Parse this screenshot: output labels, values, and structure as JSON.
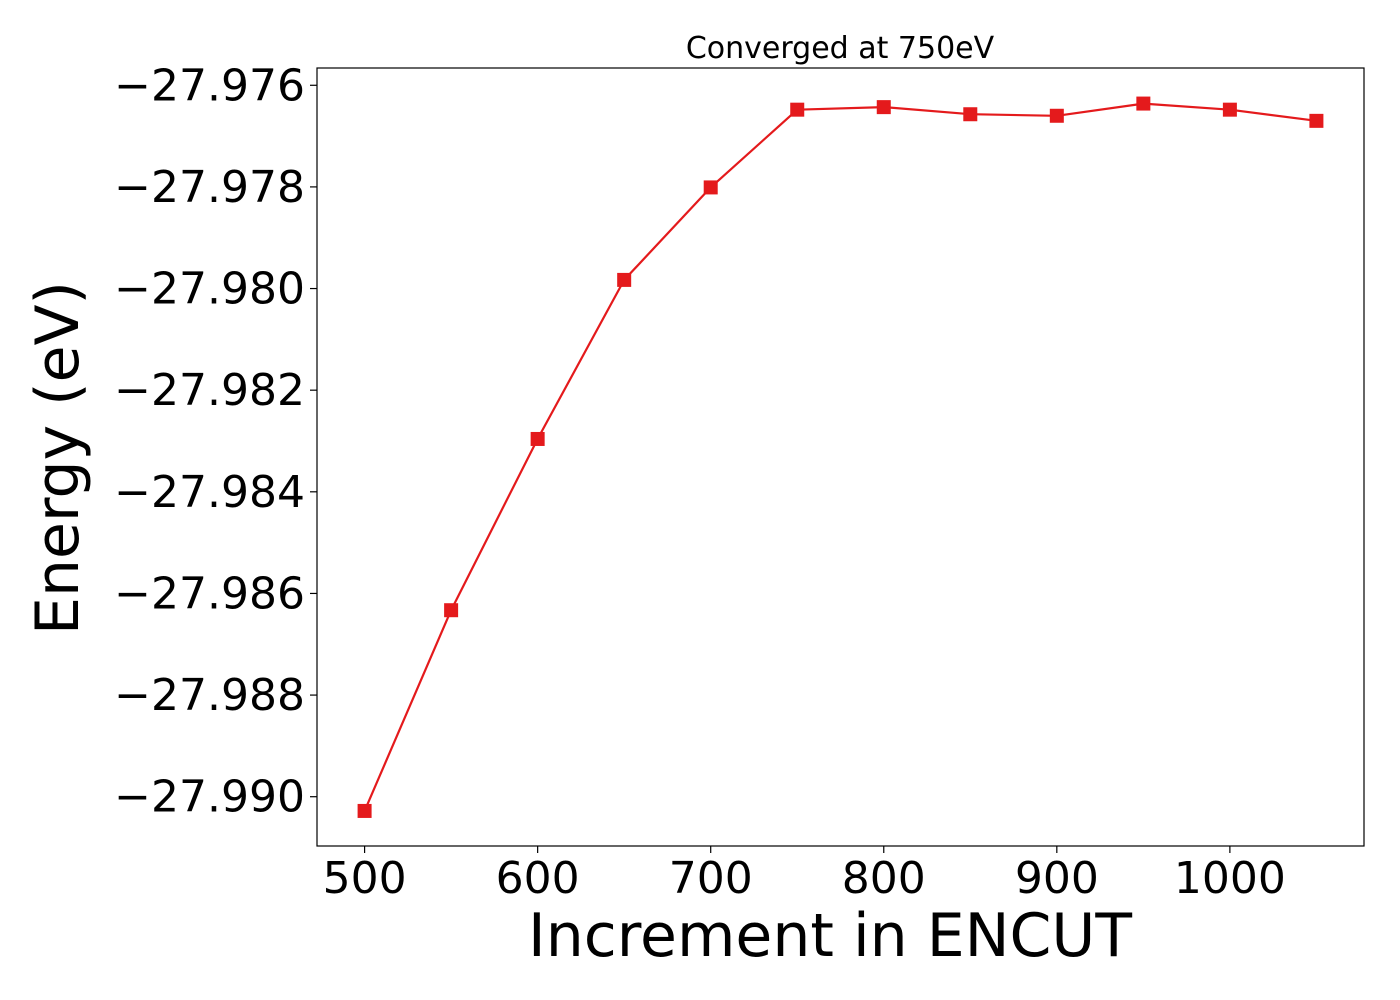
{
  "chart_data": {
    "type": "line",
    "title": "Converged at 750eV",
    "xlabel": "Increment in ENCUT",
    "ylabel": "Energy (eV)",
    "x": [
      500,
      550,
      600,
      650,
      700,
      750,
      800,
      850,
      900,
      950,
      1000,
      1050
    ],
    "series": [
      {
        "values": [
          -27.99028,
          -27.98633,
          -27.98296,
          -27.97983,
          -27.97801,
          -27.97648,
          -27.97643,
          -27.97657,
          -27.9766,
          -27.97636,
          -27.97648,
          -27.9767
        ],
        "color": "#e41a1c",
        "marker": "square"
      }
    ],
    "xticks": [
      500,
      600,
      700,
      800,
      900,
      1000
    ],
    "xtick_labels": [
      "500",
      "600",
      "700",
      "800",
      "900",
      "1000"
    ],
    "yticks": [
      -27.976,
      -27.978,
      -27.98,
      -27.982,
      -27.984,
      -27.986,
      -27.988,
      -27.99
    ],
    "ytick_labels": [
      "−27.976",
      "−27.978",
      "−27.980",
      "−27.982",
      "−27.984",
      "−27.986",
      "−27.988",
      "−27.990"
    ],
    "xlim": [
      472.5,
      1077.5
    ],
    "ylim": [
      -27.99097,
      -27.97566
    ],
    "grid": false,
    "legend": "none"
  }
}
